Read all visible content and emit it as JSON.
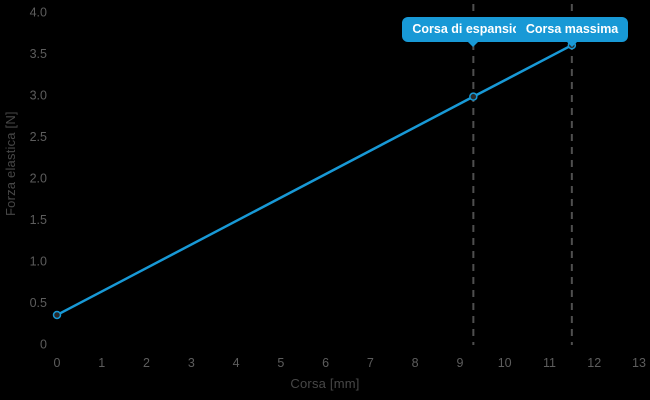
{
  "chart_data": {
    "type": "line",
    "title": "",
    "xlabel": "Corsa [mm]",
    "ylabel": "Forza elastica [N]",
    "x": [
      0,
      9.3,
      11.5
    ],
    "y": [
      0.35,
      2.98,
      3.6
    ],
    "xlim": [
      0,
      13
    ],
    "ylim": [
      0,
      4
    ],
    "xticks": [
      0,
      1,
      2,
      3,
      4,
      5,
      6,
      7,
      8,
      9,
      10,
      11,
      12,
      13
    ],
    "xtick_labels": [
      "0",
      "1",
      "2",
      "3",
      "4",
      "5",
      "6",
      "7",
      "8",
      "9",
      "10",
      "11",
      "12",
      "13"
    ],
    "yticks": [
      0,
      0.5,
      1,
      1.5,
      2,
      2.5,
      3,
      3.5,
      4
    ],
    "ytick_labels": [
      "0",
      "0.5",
      "1.0",
      "1.5",
      "2.0",
      "2.5",
      "3.0",
      "3.5",
      "4.0"
    ],
    "grid": false,
    "legend": null,
    "vlines": [
      {
        "x": 9.3,
        "style": "dashed"
      },
      {
        "x": 11.5,
        "style": "dashed"
      }
    ],
    "annotations": [
      {
        "label": "Corsa di espansione",
        "x": 9.3
      },
      {
        "label": "Corsa massima",
        "x": 11.5
      }
    ]
  },
  "colors": {
    "background": "#000000",
    "line": "#1899d6",
    "marker_fill": "#2a2a2a",
    "marker_stroke": "#1899d6",
    "vline": "#4f4f4f",
    "tick_text": "#5d5d5d",
    "axis_title_text": "#474747",
    "badge_bg": "#1899d6",
    "badge_text": "#ffffff"
  }
}
